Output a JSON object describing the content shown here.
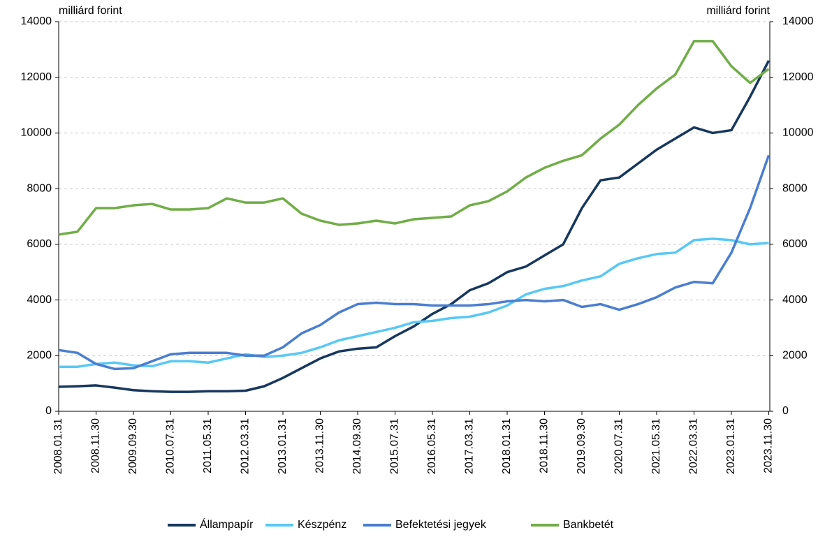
{
  "chart_data": {
    "type": "line",
    "y_label": "milliárd forint",
    "y2_label": "milliárd forint",
    "categories": [
      "2008.01.31",
      null,
      "2008.11.30",
      null,
      "2009.09.30",
      null,
      "2010.07.31",
      null,
      "2011.05.31",
      null,
      "2012.03.31",
      null,
      "2013.01.31",
      null,
      "2013.11.30",
      null,
      "2014.09.30",
      null,
      "2015.07.31",
      null,
      "2016.05.31",
      null,
      "2017.03.31",
      null,
      "2018.01.31",
      null,
      "2018.11.30",
      null,
      "2019.09.30",
      null,
      "2020.07.31",
      null,
      "2021.05.31",
      null,
      "2022.03.31",
      null,
      "2023.01.31",
      null,
      "2023.11.30"
    ],
    "series": [
      {
        "name": "Állampapír",
        "color": "#17375e",
        "values": [
          880,
          900,
          930,
          850,
          760,
          720,
          700,
          700,
          720,
          720,
          740,
          900,
          1200,
          1550,
          1900,
          2150,
          2250,
          2300,
          2700,
          3050,
          3500,
          3850,
          4350,
          4600,
          5000,
          5200,
          5600,
          6000,
          7300,
          8300,
          8400,
          8900,
          9400,
          9800,
          10200,
          10000,
          10100,
          11300,
          12600
        ]
      },
      {
        "name": "Készpénz",
        "color": "#58c8f5",
        "values": [
          1600,
          1600,
          1700,
          1750,
          1650,
          1620,
          1800,
          1800,
          1750,
          1900,
          2050,
          1950,
          2000,
          2100,
          2300,
          2550,
          2700,
          2850,
          3000,
          3200,
          3250,
          3350,
          3400,
          3550,
          3800,
          4200,
          4400,
          4500,
          4700,
          4850,
          5300,
          5500,
          5650,
          5700,
          6150,
          6200,
          6150,
          6000,
          6050
        ]
      },
      {
        "name": "Befektetési jegyek",
        "color": "#4a7ed0",
        "values": [
          2200,
          2100,
          1700,
          1520,
          1550,
          1800,
          2050,
          2100,
          2100,
          2100,
          2000,
          2000,
          2300,
          2800,
          3100,
          3550,
          3850,
          3900,
          3850,
          3850,
          3800,
          3800,
          3800,
          3850,
          3950,
          4000,
          3950,
          4000,
          3750,
          3850,
          3650,
          3850,
          4100,
          4450,
          4650,
          4600,
          5700,
          7300,
          9200
        ]
      },
      {
        "name": "Bankbetét",
        "color": "#70ad47",
        "values": [
          6350,
          6450,
          7300,
          7300,
          7400,
          7450,
          7250,
          7250,
          7300,
          7650,
          7500,
          7500,
          7650,
          7100,
          6850,
          6700,
          6750,
          6850,
          6750,
          6900,
          6950,
          7000,
          7400,
          7550,
          7900,
          8400,
          8750,
          9000,
          9200,
          9800,
          10300,
          11000,
          11600,
          12100,
          13300,
          13300,
          12400,
          11800,
          12300
        ]
      }
    ],
    "ylim": [
      0,
      14000
    ],
    "yticks": [
      0,
      2000,
      4000,
      6000,
      8000,
      10000,
      12000,
      14000
    ],
    "y2lim": [
      0,
      14000
    ],
    "y2ticks": [
      0,
      2000,
      4000,
      6000,
      8000,
      10000,
      12000,
      14000
    ],
    "grid": true,
    "legend": "bottom"
  }
}
